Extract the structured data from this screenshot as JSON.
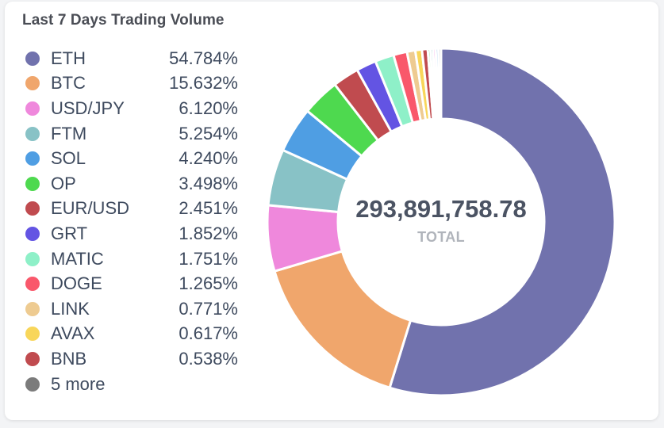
{
  "title": "Last 7 Days Trading Volume",
  "center": {
    "value": "293,891,758.78",
    "label": "TOTAL"
  },
  "legend": [
    {
      "label": "ETH",
      "value": "54.784%",
      "color": "#7172ad"
    },
    {
      "label": "BTC",
      "value": "15.632%",
      "color": "#f0a66c"
    },
    {
      "label": "USD/JPY",
      "value": "6.120%",
      "color": "#ef88dc"
    },
    {
      "label": "FTM",
      "value": "5.254%",
      "color": "#88c2c6"
    },
    {
      "label": "SOL",
      "value": "4.240%",
      "color": "#4f9ee3"
    },
    {
      "label": "OP",
      "value": "3.498%",
      "color": "#4ed94f"
    },
    {
      "label": "EUR/USD",
      "value": "2.451%",
      "color": "#c04b4f"
    },
    {
      "label": "GRT",
      "value": "1.852%",
      "color": "#6354e3"
    },
    {
      "label": "MATIC",
      "value": "1.751%",
      "color": "#8ef0c8"
    },
    {
      "label": "DOGE",
      "value": "1.265%",
      "color": "#f9586b"
    },
    {
      "label": "LINK",
      "value": "0.771%",
      "color": "#eecb91"
    },
    {
      "label": "AVAX",
      "value": "0.617%",
      "color": "#f8d65a"
    },
    {
      "label": "BNB",
      "value": "0.538%",
      "color": "#c04b4f"
    },
    {
      "label": "5 more",
      "value": "",
      "color": "#7b7b7b"
    }
  ],
  "chart_data": {
    "type": "pie",
    "title": "Last 7 Days Trading Volume",
    "total": "293,891,758.78",
    "categories": [
      "ETH",
      "BTC",
      "USD/JPY",
      "FTM",
      "SOL",
      "OP",
      "EUR/USD",
      "GRT",
      "MATIC",
      "DOGE",
      "LINK",
      "AVAX",
      "BNB",
      "5 more"
    ],
    "values": [
      54.784,
      15.632,
      6.12,
      5.254,
      4.24,
      3.498,
      2.451,
      1.852,
      1.751,
      1.265,
      0.771,
      0.617,
      0.538,
      1.227
    ],
    "colors": [
      "#7172ad",
      "#f0a66c",
      "#ef88dc",
      "#88c2c6",
      "#4f9ee3",
      "#4ed94f",
      "#c04b4f",
      "#6354e3",
      "#8ef0c8",
      "#f9586b",
      "#eecb91",
      "#f8d65a",
      "#c04b4f",
      "#7b7b7b"
    ],
    "other_colors": [
      "#4ed94f",
      "#88c2c6",
      "#ef88dc",
      "#4f9ee3",
      "#b7b7b7"
    ],
    "donut": true,
    "legend_position": "left"
  }
}
